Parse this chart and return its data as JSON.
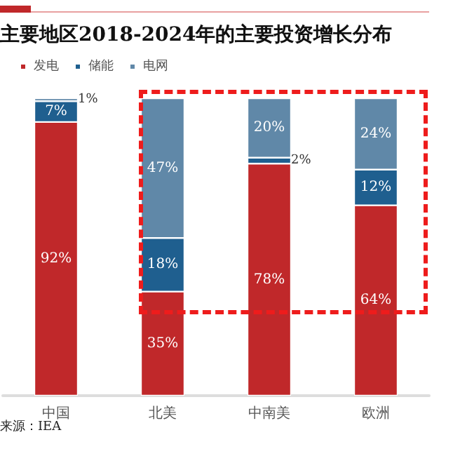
{
  "chart_data": {
    "type": "bar",
    "title": "主要地区2018-2024年的主要投资增长分布",
    "annotations": [
      "来源：IEA"
    ],
    "categories": [
      "中国",
      "北美",
      "中南美",
      "欧洲"
    ],
    "series": [
      {
        "name": "发电",
        "color": "#c0282a",
        "values": [
          92,
          35,
          78,
          64
        ],
        "value_labels": [
          "92%",
          "35%",
          "78%",
          "64%"
        ]
      },
      {
        "name": "储能",
        "color": "#1f5f8f",
        "values": [
          7,
          18,
          2,
          12
        ],
        "value_labels": [
          "7%",
          "18%",
          "2%",
          "12%"
        ]
      },
      {
        "name": "电网",
        "color": "#6088a8",
        "values": [
          1,
          47,
          20,
          24
        ],
        "value_labels": [
          "1%",
          "47%",
          "20%",
          "24%"
        ]
      }
    ],
    "stacked": true,
    "ylim": [
      0,
      100
    ],
    "tick_labels": "x",
    "legend": "top left",
    "grid": false
  }
}
